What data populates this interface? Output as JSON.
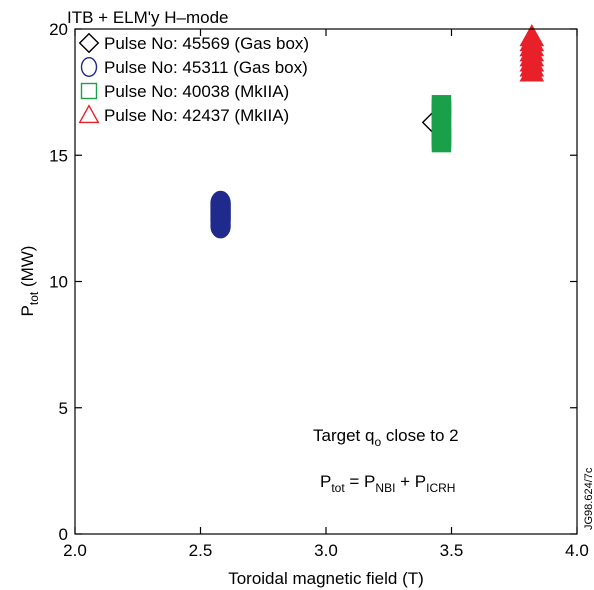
{
  "chart_data": {
    "type": "scatter",
    "title": "ITB + ELM'y H–mode",
    "xlabel": "Toroidal magnetic field (T)",
    "ylabel": {
      "main": "P",
      "sub": "tot",
      "suffix": " (MW)"
    },
    "xlim": [
      2.0,
      4.0
    ],
    "ylim": [
      0,
      20
    ],
    "x_ticks": [
      2.0,
      2.5,
      3.0,
      3.5,
      4.0
    ],
    "x_tick_labels": [
      "2.0",
      "2.5",
      "3.0",
      "3.5",
      "4.0"
    ],
    "y_ticks": [
      0,
      5,
      10,
      15,
      20
    ],
    "y_tick_labels": [
      "0",
      "5",
      "10",
      "15",
      "20"
    ],
    "grid": false,
    "legend_position": "top-left",
    "series": [
      {
        "name": "Pulse No: 45569 (Gas box)",
        "marker": "diamond",
        "color": "#000000",
        "points": [
          [
            3.43,
            16.3
          ]
        ]
      },
      {
        "name": "Pulse No: 45311 (Gas box)",
        "marker": "circle",
        "color": "#1f2a8c",
        "points": [
          [
            2.58,
            12.2
          ],
          [
            2.58,
            12.4
          ],
          [
            2.58,
            12.5
          ],
          [
            2.58,
            12.6
          ],
          [
            2.58,
            12.7
          ],
          [
            2.58,
            12.8
          ],
          [
            2.58,
            12.9
          ],
          [
            2.58,
            13.0
          ],
          [
            2.58,
            13.1
          ]
        ]
      },
      {
        "name": "Pulse No: 40038 (MkIIA)",
        "marker": "square",
        "color": "#1aa04a",
        "points": [
          [
            3.46,
            15.5
          ],
          [
            3.46,
            15.6
          ],
          [
            3.46,
            15.7
          ],
          [
            3.46,
            15.8
          ],
          [
            3.46,
            15.9
          ],
          [
            3.46,
            16.0
          ],
          [
            3.46,
            16.5
          ],
          [
            3.46,
            16.6
          ],
          [
            3.46,
            16.7
          ],
          [
            3.46,
            16.8
          ],
          [
            3.46,
            16.9
          ],
          [
            3.46,
            17.0
          ]
        ]
      },
      {
        "name": "Pulse No: 42437 (MkIIA)",
        "marker": "triangle",
        "color": "#e8202a",
        "points": [
          [
            3.82,
            18.3
          ],
          [
            3.82,
            18.5
          ],
          [
            3.82,
            18.7
          ],
          [
            3.82,
            18.9
          ],
          [
            3.82,
            19.1
          ],
          [
            3.82,
            19.3
          ],
          [
            3.82,
            19.5
          ],
          [
            3.82,
            19.7
          ]
        ]
      }
    ],
    "annotations": {
      "target": {
        "main": "Target q",
        "sub": "o",
        "suffix": " close to 2"
      },
      "equation": [
        {
          "t": "P",
          "s": false
        },
        {
          "t": "tot",
          "s": true
        },
        {
          "t": " = P",
          "s": false
        },
        {
          "t": "NBI",
          "s": true
        },
        {
          "t": " + P",
          "s": false
        },
        {
          "t": "ICRH",
          "s": true
        }
      ],
      "code": "JG98.624/7c"
    }
  }
}
